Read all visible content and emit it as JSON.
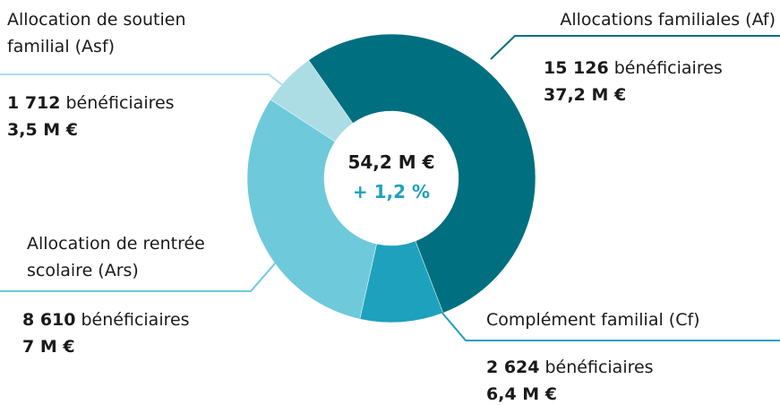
{
  "chart_data": {
    "type": "donut",
    "categories": [
      "Allocations familiales (Af)",
      "Complément familial (Cf)",
      "Allocation de rentrée scolaire (Ars)",
      "Allocation de soutien familial (Asf)"
    ],
    "colors": [
      "#006f7f",
      "#1ea1bd",
      "#6ec9db",
      "#acdde5"
    ],
    "beneficiaries": [
      15126,
      2624,
      8610,
      1712
    ],
    "beneficiaries_labels": [
      "15 126",
      "2 624",
      "8 610",
      "1 712"
    ],
    "beneficiaries_unit": "bénéficiaires",
    "values": [
      37.2,
      6.4,
      7,
      3.5
    ],
    "value_labels": [
      "37,2 M €",
      "6,4 M €",
      "7 M €",
      "3,5 M €"
    ],
    "total": 54.2,
    "total_label": "54,2 M €",
    "change": 1.2,
    "change_label": "+ 1,2 %"
  }
}
